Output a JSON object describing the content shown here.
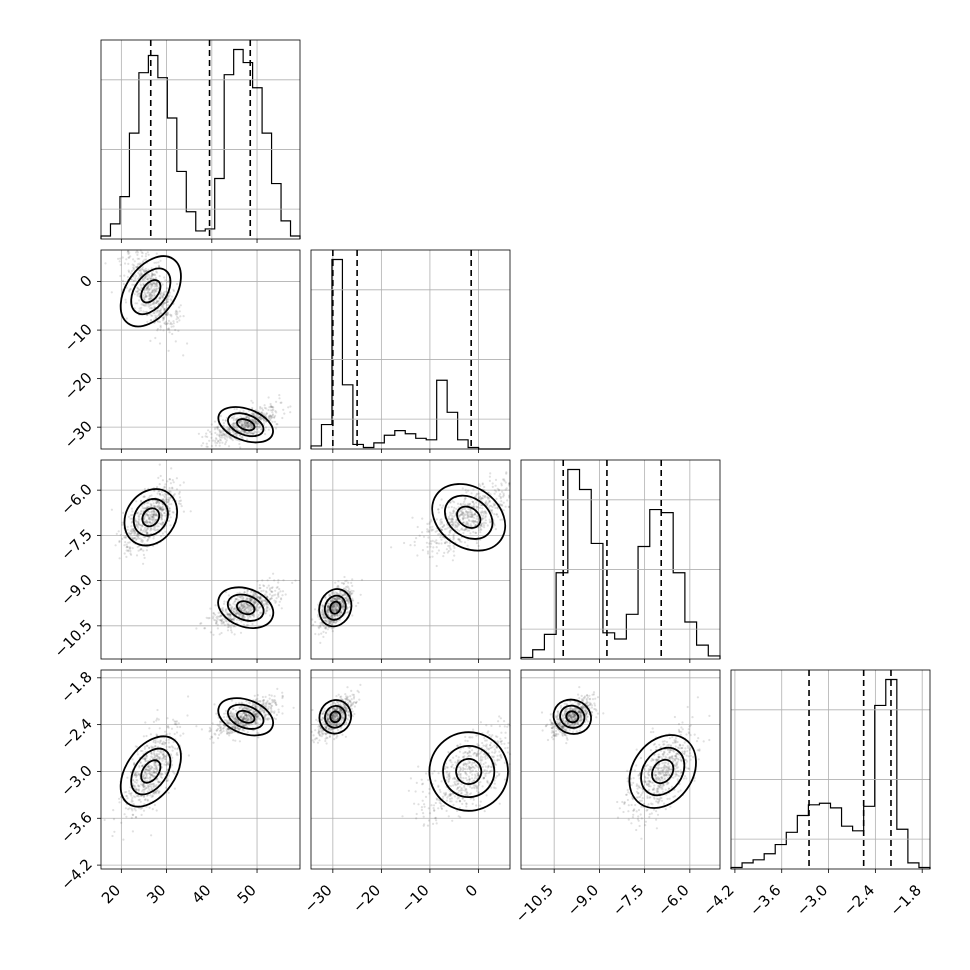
{
  "chart_data": {
    "type": "corner",
    "title": "",
    "params": [
      {
        "ticks": [
          20,
          30,
          40,
          50
        ],
        "tick_labels": [
          "20",
          "30",
          "40",
          "50"
        ],
        "range": [
          15.5,
          59.5
        ]
      },
      {
        "ticks": [
          -30,
          -20,
          -10,
          0
        ],
        "tick_labels": [
          "−30",
          "−20",
          "−10",
          "0"
        ],
        "range": [
          -34.5,
          6.5
        ]
      },
      {
        "ticks": [
          -10.5,
          -9.0,
          -7.5,
          -6.0
        ],
        "tick_labels": [
          "−10.5",
          "−9.0",
          "−7.5",
          "−6.0"
        ],
        "range": [
          -11.6,
          -5.0
        ]
      },
      {
        "ticks": [
          -4.2,
          -3.6,
          -3.0,
          -2.4,
          -1.8
        ],
        "tick_labels": [
          "−4.2",
          "−3.6",
          "−3.0",
          "−2.4",
          "−1.8"
        ],
        "range": [
          -4.25,
          -1.7
        ]
      }
    ],
    "quantiles": [
      [
        26.5,
        39.5,
        48.5
      ],
      [
        -30.0,
        -25.0,
        -1.5
      ],
      [
        -10.2,
        -8.75,
        -6.95
      ],
      [
        -3.25,
        -2.55,
        -2.2
      ]
    ],
    "histograms": [
      {
        "counts": [
          0.3,
          1.5,
          4.2,
          10.5,
          16.5,
          18.2,
          16.0,
          12.0,
          6.7,
          2.7,
          0.8,
          1.0,
          6.0,
          16.3,
          18.8,
          17.5,
          15.0,
          10.5,
          5.5,
          1.8,
          0.3
        ]
      },
      {
        "counts": [
          0.2,
          1.6,
          12.4,
          4.2,
          0.3,
          0.1,
          0.4,
          0.9,
          1.2,
          1.0,
          0.7,
          0.6,
          4.5,
          2.4,
          0.6,
          0.1,
          0.0,
          0.0,
          0.0
        ]
      },
      {
        "counts": [
          0.1,
          0.6,
          1.6,
          5.6,
          12.3,
          11.0,
          7.5,
          1.7,
          1.3,
          2.9,
          7.3,
          9.7,
          9.5,
          5.6,
          2.4,
          0.9,
          0.2
        ]
      },
      {
        "counts": [
          0.1,
          0.4,
          0.6,
          1.0,
          1.6,
          2.4,
          3.5,
          4.2,
          4.3,
          4.0,
          2.8,
          2.5,
          4.1,
          10.7,
          12.4,
          2.6,
          0.4,
          0.1
        ]
      }
    ],
    "modes": [
      {
        "p1": 26.5,
        "p2": -2.0,
        "p3": -6.9,
        "p4": -3.0,
        "weight": 0.5
      },
      {
        "p1": 47.5,
        "p2": -29.5,
        "p3": -9.9,
        "p4": -2.3,
        "weight": 0.5
      }
    ]
  }
}
